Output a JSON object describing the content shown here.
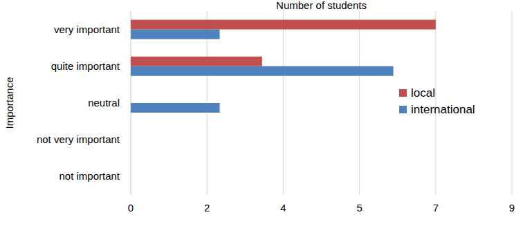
{
  "chart_data": {
    "type": "bar",
    "orientation": "horizontal",
    "xlabel": "Number of students",
    "ylabel": "Importance",
    "categories": [
      "very important",
      "quite important",
      "neutral",
      "not very important",
      "not important"
    ],
    "series": [
      {
        "name": "local",
        "color": "#c0504d",
        "values": [
          7.2,
          3.1,
          0,
          0,
          0
        ]
      },
      {
        "name": "international",
        "color": "#4f81bd",
        "values": [
          2.1,
          6.2,
          2.1,
          0,
          0
        ]
      }
    ],
    "xlim": [
      0,
      9
    ],
    "xticks": [
      0,
      {
        "value": 1.8,
        "label": "2"
      },
      {
        "value": 3.6,
        "label": "4"
      },
      {
        "value": 5.4,
        "label": "5"
      },
      {
        "value": 7.2,
        "label": "7"
      },
      9
    ],
    "grid": true,
    "legend": "right"
  }
}
